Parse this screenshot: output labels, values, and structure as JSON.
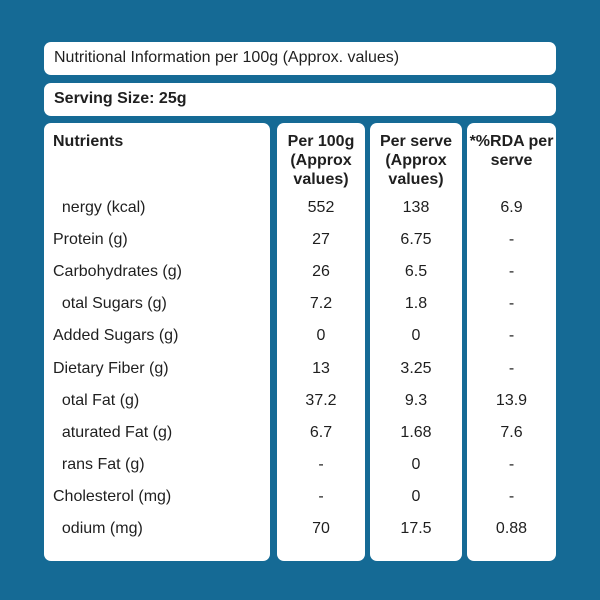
{
  "title": "Nutritional Information per 100g (Approx. values)",
  "serving_size": "Serving Size:  25g",
  "columns": {
    "nutrients": "Nutrients",
    "per100": "Per 100g (Approx values)",
    "per_serve": "Per serve (Approx values)",
    "rda": "*%RDA per serve"
  },
  "rows": [
    {
      "name": "  nergy (kcal)",
      "per100": "552",
      "per_serve": "138",
      "rda": "6.9"
    },
    {
      "name": "Protein (g)",
      "per100": "27",
      "per_serve": "6.75",
      "rda": "-"
    },
    {
      "name": "Carbohydrates (g)",
      "per100": "26",
      "per_serve": "6.5",
      "rda": "-"
    },
    {
      "name": "  otal Sugars (g)",
      "per100": "7.2",
      "per_serve": "1.8",
      "rda": "-"
    },
    {
      "name": "Added Sugars (g)",
      "per100": "0",
      "per_serve": "0",
      "rda": "-"
    },
    {
      "name": "Dietary Fiber (g)",
      "per100": "13",
      "per_serve": "3.25",
      "rda": "-"
    },
    {
      "name": "  otal Fat (g)",
      "per100": "37.2",
      "per_serve": "9.3",
      "rda": "13.9"
    },
    {
      "name": "  aturated Fat (g)",
      "per100": "6.7",
      "per_serve": "1.68",
      "rda": "7.6"
    },
    {
      "name": "  rans Fat (g)",
      "per100": "-",
      "per_serve": "0",
      "rda": "-"
    },
    {
      "name": "Cholesterol (mg)",
      "per100": "-",
      "per_serve": "0",
      "rda": "-"
    },
    {
      "name": "  odium (mg)",
      "per100": "70",
      "per_serve": "17.5",
      "rda": "0.88"
    }
  ],
  "colors": {
    "background": "#156a95",
    "panel": "#ffffff",
    "text": "#1f1f1f"
  }
}
